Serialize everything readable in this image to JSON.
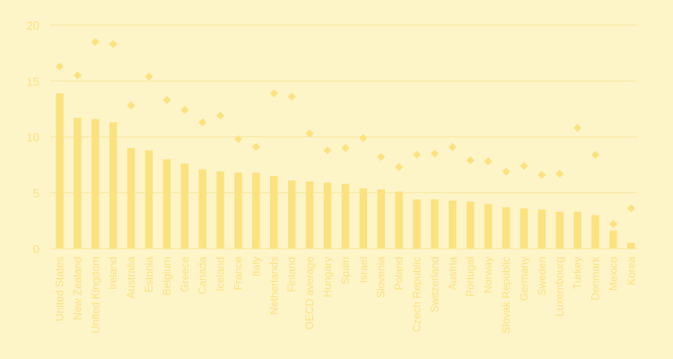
{
  "colors": {
    "background": "#fdf4c8",
    "bar": "#fbe27f",
    "marker": "#fbe27f",
    "grid": "#f8e7a0",
    "text": "#fbe27f"
  },
  "chart_data": {
    "type": "bar",
    "ylim": [
      0,
      20
    ],
    "yticks": [
      0,
      5,
      10,
      15,
      20
    ],
    "grid": true,
    "categories": [
      "United States",
      "New Zealand",
      "United Kingdom",
      "Ireland",
      "Australia",
      "Estonia",
      "Belgium",
      "Greece",
      "Canada",
      "Iceland",
      "France",
      "Italy",
      "Netherlands",
      "Finland",
      "OECD average",
      "Hungary",
      "Spain",
      "Israel",
      "Slovenia",
      "Poland",
      "Czech Republic",
      "Switzerland",
      "Austria",
      "Portugal",
      "Norway",
      "Slovak Republic",
      "Germany",
      "Sweden",
      "Luxembourg",
      "Turkey",
      "Denmark",
      "Mexico",
      "Korea"
    ],
    "series": [
      {
        "type": "bar",
        "values": [
          13.9,
          11.7,
          11.6,
          11.3,
          9.0,
          8.8,
          8.0,
          7.6,
          7.1,
          6.9,
          6.8,
          6.8,
          6.5,
          6.1,
          6.0,
          5.9,
          5.8,
          5.4,
          5.3,
          5.1,
          4.4,
          4.4,
          4.3,
          4.2,
          4.0,
          3.7,
          3.6,
          3.5,
          3.3,
          3.3,
          3.0,
          1.6,
          0.5
        ]
      },
      {
        "type": "scatter",
        "marker": "diamond",
        "values": [
          16.3,
          15.5,
          18.5,
          18.3,
          12.8,
          15.4,
          13.3,
          12.4,
          11.3,
          11.9,
          9.8,
          9.1,
          13.9,
          13.6,
          10.3,
          8.8,
          9.0,
          9.9,
          8.2,
          7.3,
          8.4,
          8.5,
          9.1,
          7.9,
          7.8,
          6.9,
          7.4,
          6.6,
          6.7,
          10.8,
          8.4,
          2.2,
          3.6
        ]
      }
    ]
  }
}
